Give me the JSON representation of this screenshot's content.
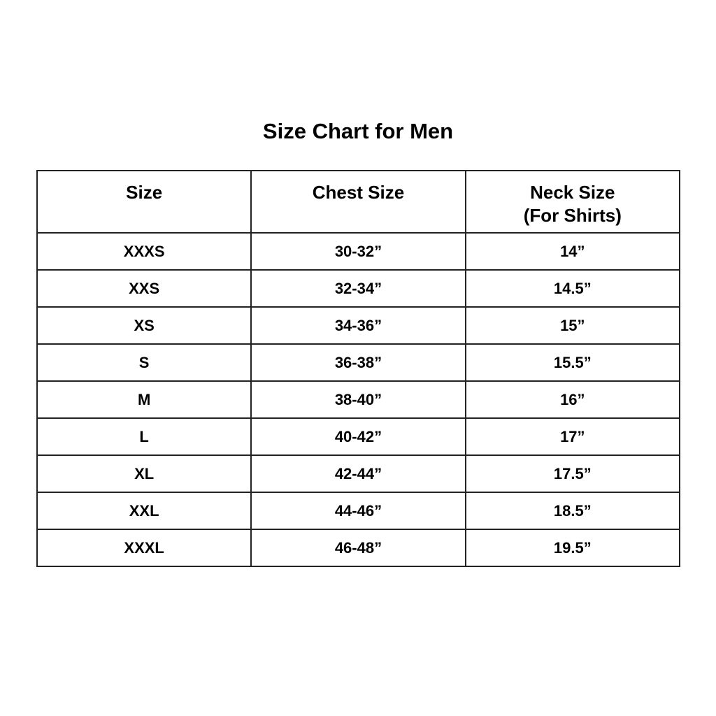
{
  "title": "Size Chart for Men",
  "table": {
    "headers": [
      "Size",
      "Chest Size",
      "Neck Size",
      "(For Shirts)"
    ],
    "rows": [
      [
        "XXXS",
        "30-32”",
        "14”"
      ],
      [
        "XXS",
        "32-34”",
        "14.5”"
      ],
      [
        "XS",
        "34-36”",
        "15”"
      ],
      [
        "S",
        "36-38”",
        "15.5”"
      ],
      [
        "M",
        "38-40”",
        "16”"
      ],
      [
        "L",
        "40-42”",
        "17”"
      ],
      [
        "XL",
        "42-44”",
        "17.5”"
      ],
      [
        "XXL",
        "44-46”",
        "18.5”"
      ],
      [
        "XXXL",
        "46-48”",
        "19.5”"
      ]
    ]
  }
}
